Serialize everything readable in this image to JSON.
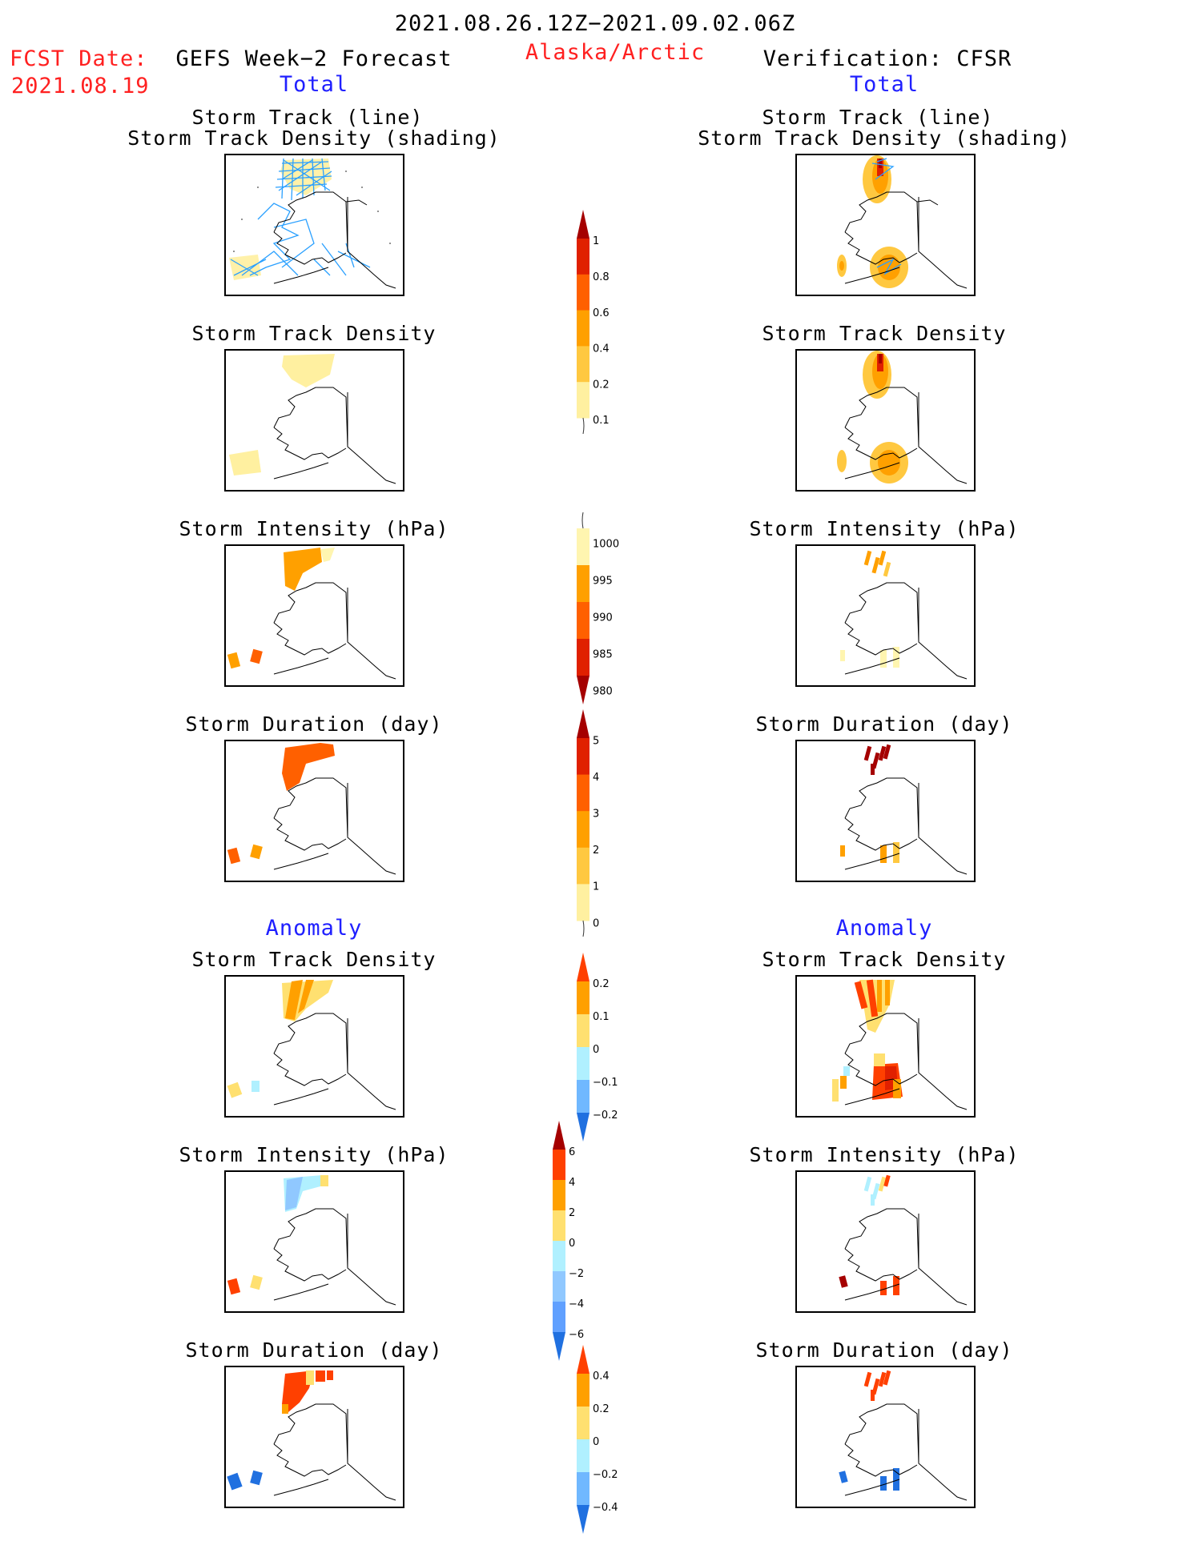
{
  "header": {
    "date_range": "2021.08.26.12Z−2021.09.02.06Z",
    "fcst_label": "FCST Date:",
    "fcst_date": "2021.08.19",
    "left_title": "GEFS Week−2 Forecast",
    "region": "Alaska/Arctic",
    "right_title": "Verification: CFSR",
    "left_sub": "Total",
    "right_sub": "Total"
  },
  "sections": {
    "anomaly_left": "Anomaly",
    "anomaly_right": "Anomaly"
  },
  "panels": {
    "track_line": [
      "Storm Track (line)",
      "Storm Track Density (shading)"
    ],
    "density": "Storm Track Density",
    "intensity": "Storm Intensity (hPa)",
    "duration": "Storm Duration (day)"
  },
  "colorbars": {
    "density_total": {
      "ticks": [
        "1",
        "0.8",
        "0.6",
        "0.4",
        "0.2",
        "0.1"
      ],
      "colors": [
        "#a50000",
        "#e02000",
        "#ff6000",
        "#ffa000",
        "#ffc840",
        "#fff0a0"
      ]
    },
    "intensity_total": {
      "ticks": [
        "1000",
        "995",
        "990",
        "985",
        "980"
      ],
      "colors": [
        "#fff5b0",
        "#ffa000",
        "#ff6000",
        "#e02000",
        "#a50000"
      ]
    },
    "duration_total": {
      "ticks": [
        "5",
        "4",
        "3",
        "2",
        "1",
        "0"
      ],
      "colors": [
        "#a50000",
        "#e02000",
        "#ff6000",
        "#ffa000",
        "#ffc840",
        "#fff0a0"
      ]
    },
    "density_anom": {
      "ticks": [
        "0.2",
        "0.1",
        "0",
        "−0.1",
        "−0.2"
      ],
      "colors": [
        "#ff4000",
        "#ffa000",
        "#ffe070",
        "#b0f0ff",
        "#70b8ff",
        "#2070e0"
      ]
    },
    "intensity_anom": {
      "ticks": [
        "6",
        "4",
        "2",
        "0",
        "−2",
        "−4",
        "−6"
      ],
      "colors": [
        "#a50000",
        "#ff4000",
        "#ffa000",
        "#ffe070",
        "#b0f0ff",
        "#90c8ff",
        "#60a0ff",
        "#2070e0"
      ]
    },
    "duration_anom": {
      "ticks": [
        "0.4",
        "0.2",
        "0",
        "−0.2",
        "−0.4"
      ],
      "colors": [
        "#ff4000",
        "#ffa000",
        "#ffe070",
        "#b0f0ff",
        "#70b8ff",
        "#2070e0"
      ]
    }
  }
}
